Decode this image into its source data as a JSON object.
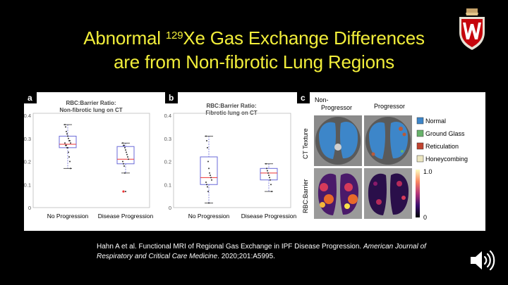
{
  "slide": {
    "title_line1_pre": "Abnormal ",
    "title_line1_sup": "129",
    "title_line1_post": "Xe Gas Exchange Differences",
    "title_line2": "are from Non-fibrotic Lung Regions",
    "crest_letter": "W",
    "citation": {
      "part1": "Hahn A et al. Functional MRI of Regional Gas Exchange in IPF Disease Progression. ",
      "journal": "American Journal of Respiratory and Critical Care Medicine",
      "part2": ". 2020;201:A5995."
    }
  },
  "figure": {
    "panel_labels": [
      "a",
      "b",
      "c"
    ],
    "chart_a": {
      "title_line1": "RBC:Barrier Ratio:",
      "title_line2": "Non-fibrotic lung on CT",
      "yticks": [
        "0.4",
        "0.3",
        "0.2",
        "0.1",
        "0"
      ],
      "xlabels": [
        "No Progression",
        "Disease Progression"
      ]
    },
    "chart_b": {
      "title_line1": "RBC:Barrier Ratio:",
      "title_line2": "Fibrotic lung on CT",
      "yticks": [
        "0.4",
        "0.3",
        "0.2",
        "0.1",
        "0"
      ],
      "xlabels": [
        "No Progression",
        "Disease Progression"
      ]
    },
    "panel_c": {
      "col1_line1": "Non-",
      "col1_line2": "Progressor",
      "col2": "Progressor",
      "row1": "CT Texture",
      "row2": "RBC:Barrier",
      "legend": [
        "Normal",
        "Ground Glass",
        "Reticulation",
        "Honeycombing"
      ],
      "colorbar_max": "1.0",
      "colorbar_min": "0"
    }
  },
  "chart_data": [
    {
      "type": "box",
      "title": "RBC:Barrier Ratio: Non-fibrotic lung on CT",
      "categories": [
        "No Progression",
        "Disease Progression"
      ],
      "ylim": [
        0,
        0.4
      ],
      "series": [
        {
          "values_summary": {
            "min": 0.17,
            "q1": 0.26,
            "median": 0.275,
            "q3": 0.31,
            "max": 0.36
          },
          "points": [
            0.36,
            0.35,
            0.33,
            0.32,
            0.31,
            0.3,
            0.29,
            0.29,
            0.28,
            0.28,
            0.27,
            0.27,
            0.26,
            0.26,
            0.24,
            0.22,
            0.2,
            0.17
          ]
        },
        {
          "values_summary": {
            "min": 0.15,
            "q1": 0.19,
            "median": 0.21,
            "q3": 0.265,
            "max": 0.28,
            "outlier": 0.07
          },
          "points": [
            0.28,
            0.27,
            0.27,
            0.26,
            0.25,
            0.24,
            0.23,
            0.22,
            0.21,
            0.2,
            0.19,
            0.18,
            0.15,
            0.07
          ]
        }
      ]
    },
    {
      "type": "box",
      "title": "RBC:Barrier Ratio: Fibrotic lung on CT",
      "categories": [
        "No Progression",
        "Disease Progression"
      ],
      "ylim": [
        0,
        0.4
      ],
      "series": [
        {
          "values_summary": {
            "min": 0.02,
            "q1": 0.1,
            "median": 0.13,
            "q3": 0.22,
            "max": 0.31
          },
          "points": [
            0.31,
            0.29,
            0.26,
            0.2,
            0.17,
            0.15,
            0.14,
            0.13,
            0.12,
            0.11,
            0.1,
            0.09,
            0.07,
            0.02
          ]
        },
        {
          "values_summary": {
            "min": 0.07,
            "q1": 0.12,
            "median": 0.15,
            "q3": 0.17,
            "max": 0.19
          },
          "points": [
            0.19,
            0.17,
            0.16,
            0.15,
            0.14,
            0.13,
            0.12,
            0.1,
            0.07
          ]
        }
      ]
    }
  ]
}
